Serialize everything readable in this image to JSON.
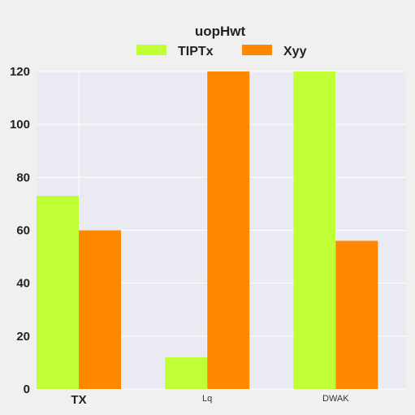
{
  "chart_data": {
    "type": "bar",
    "title": "uopHwt",
    "categories": [
      "TX",
      "Lq",
      "DWAK"
    ],
    "series": [
      {
        "name": "TIPTx",
        "values": [
          73,
          12,
          120
        ],
        "color": "#c0ff33"
      },
      {
        "name": "Xyy",
        "values": [
          60,
          120,
          56
        ],
        "color": "#ff8800"
      }
    ],
    "xlabel": "",
    "ylabel": "",
    "ylim": [
      0,
      120
    ],
    "yticks": [
      0,
      20,
      40,
      60,
      80,
      100,
      120
    ],
    "grid": true,
    "legend_position": "top-center",
    "plot_background": "#eaeaf2"
  }
}
